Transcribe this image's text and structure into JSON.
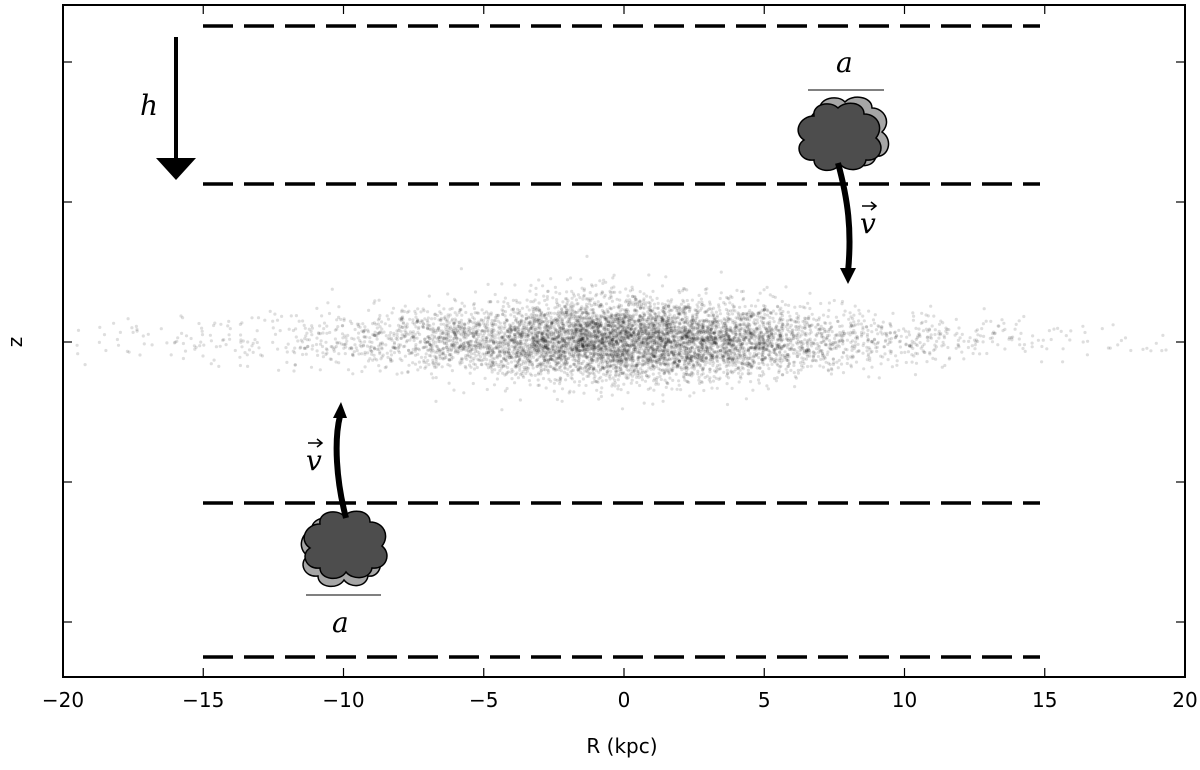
{
  "chart_data": {
    "type": "scatter",
    "title": "",
    "xlabel": "R (kpc)",
    "ylabel": "z",
    "xlim": [
      -20,
      20
    ],
    "xticks": [
      -20,
      -15,
      -10,
      -5,
      0,
      5,
      10,
      15,
      20
    ],
    "xtick_labels": [
      "−20",
      "−15",
      "−10",
      "−5",
      "0",
      "5",
      "10",
      "15",
      "20"
    ],
    "ytick_labels_shown": false,
    "grid": false,
    "legend": "none",
    "disk": {
      "description_points": "stellar disk particles",
      "center_R": 0,
      "extent_R": [
        -19.5,
        19.5
      ],
      "color": "#000000"
    },
    "layers": [
      {
        "name": "upper-outer-boundary",
        "R_range": [
          -15,
          15
        ],
        "style": "dashed"
      },
      {
        "name": "upper-inner-boundary",
        "R_range": [
          -15,
          15
        ],
        "style": "dashed"
      },
      {
        "name": "lower-inner-boundary",
        "R_range": [
          -15,
          15
        ],
        "style": "dashed"
      },
      {
        "name": "lower-outer-boundary",
        "R_range": [
          -15,
          15
        ],
        "style": "dashed"
      }
    ],
    "annotations": {
      "h_arrow": {
        "R": -16,
        "label": "h"
      },
      "cloud_upper": {
        "R": 8,
        "size_label": "a",
        "velocity_label": "v"
      },
      "cloud_lower": {
        "R": -10,
        "size_label": "a",
        "velocity_label": "v"
      }
    },
    "colors": {
      "cloud_front": "#4d4d4d",
      "cloud_back": "#a6a6a6",
      "points": "#000000"
    }
  }
}
